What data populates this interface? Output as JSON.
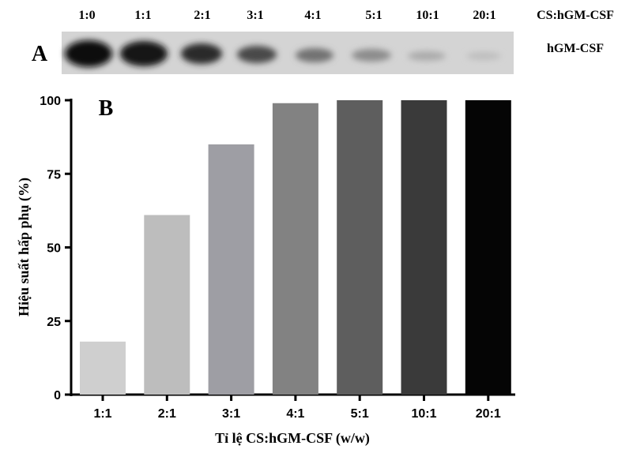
{
  "gel": {
    "panel_label": "A",
    "lanes": [
      "1:0",
      "1:1",
      "2:1",
      "3:1",
      "4:1",
      "5:1",
      "10:1",
      "20:1"
    ],
    "lane_header": "CS:hGM-CSF",
    "band_label": "hGM-CSF"
  },
  "chart_data": {
    "type": "bar",
    "panel_label": "B",
    "categories": [
      "1:1",
      "2:1",
      "3:1",
      "4:1",
      "5:1",
      "10:1",
      "20:1"
    ],
    "values": [
      18,
      61,
      85,
      99,
      100,
      100,
      100
    ],
    "colors": [
      "#cfcfcf",
      "#bdbdbd",
      "#9e9ea4",
      "#828282",
      "#5e5e5e",
      "#3a3a3a",
      "#050505"
    ],
    "x_label": "Tỉ lệ CS:hGM-CSF (w/w)",
    "y_label": "Hiệu suất hấp phụ (%)",
    "ylim": [
      0,
      100
    ],
    "yticks": [
      0,
      25,
      50,
      75,
      100
    ],
    "grid": false
  }
}
